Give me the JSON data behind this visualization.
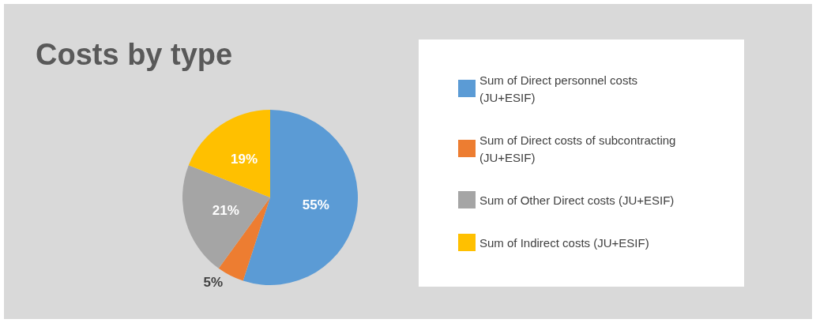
{
  "chart_data": {
    "type": "pie",
    "title": "Costs by type",
    "categories": [
      "Sum of Direct personnel costs (JU+ESIF)",
      "Sum of Direct costs of subcontracting (JU+ESIF)",
      "Sum of Other Direct costs (JU+ESIF)",
      "Sum of Indirect costs (JU+ESIF)"
    ],
    "values": [
      55,
      5,
      21,
      19
    ],
    "colors": [
      "#5b9bd5",
      "#ed7d31",
      "#a5a5a5",
      "#ffc000"
    ],
    "value_labels": [
      "55%",
      "5%",
      "21%",
      "19%"
    ],
    "legend": "right"
  }
}
